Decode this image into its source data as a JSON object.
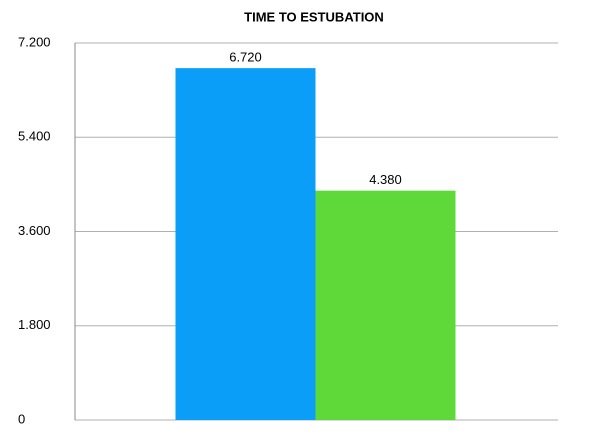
{
  "chart_data": {
    "type": "bar",
    "title": "TIME TO ESTUBATION",
    "categories": [
      null,
      null
    ],
    "values": [
      6.72,
      4.38
    ],
    "value_labels": [
      "6.720",
      "4.380"
    ],
    "colors": [
      "#0a9ef8",
      "#5fd83a"
    ],
    "ylim": [
      0,
      7.2
    ],
    "yticks": [
      0,
      {
        "value": 1.8,
        "label": "1.800"
      },
      {
        "value": 3.6,
        "label": "3.600"
      },
      {
        "value": 5.4,
        "label": "5.400"
      },
      {
        "value": 7.2,
        "label": "7.200"
      }
    ],
    "grid": true
  }
}
